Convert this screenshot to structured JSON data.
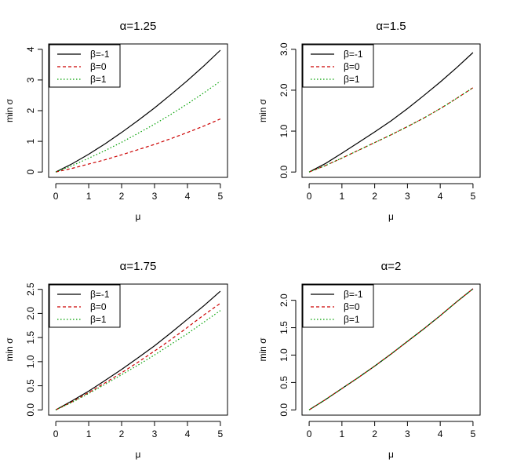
{
  "chart_data": [
    {
      "type": "line",
      "title": "α=1.25",
      "xlabel": "μ",
      "ylabel": "min σ",
      "xlim": [
        0,
        5
      ],
      "ylim": [
        0,
        4
      ],
      "xticks": [
        0,
        1,
        2,
        3,
        4,
        5
      ],
      "yticks": [
        0,
        1,
        2,
        3,
        4
      ],
      "ytick_labels": [
        "0",
        "1",
        "2",
        "3",
        "4"
      ],
      "legend_position": "top-left",
      "x": [
        0,
        0.5,
        1,
        1.5,
        2,
        2.5,
        3,
        3.5,
        4,
        4.5,
        5
      ],
      "series": [
        {
          "name": "β=-1",
          "color": "#000000",
          "dash": "solid",
          "values": [
            0,
            0.27,
            0.58,
            0.92,
            1.29,
            1.68,
            2.09,
            2.53,
            2.98,
            3.46,
            3.97
          ]
        },
        {
          "name": "β=0",
          "color": "#cc0000",
          "dash": "dashed",
          "values": [
            0,
            0.12,
            0.26,
            0.4,
            0.56,
            0.73,
            0.9,
            1.09,
            1.29,
            1.5,
            1.73
          ]
        },
        {
          "name": "β=1",
          "color": "#00a000",
          "dash": "dotted",
          "values": [
            0,
            0.21,
            0.45,
            0.7,
            0.97,
            1.26,
            1.56,
            1.88,
            2.22,
            2.58,
            2.96
          ]
        }
      ]
    },
    {
      "type": "line",
      "title": "α=1.5",
      "xlabel": "μ",
      "ylabel": "min σ",
      "xlim": [
        0,
        5
      ],
      "ylim": [
        0,
        3
      ],
      "xticks": [
        0,
        1,
        2,
        3,
        4,
        5
      ],
      "yticks": [
        0,
        1,
        2,
        3
      ],
      "ytick_labels": [
        "0.0",
        "1.0",
        "2.0",
        "3.0"
      ],
      "legend_position": "top-left",
      "x": [
        0,
        0.5,
        1,
        1.5,
        2,
        2.5,
        3,
        3.5,
        4,
        4.5,
        5
      ],
      "series": [
        {
          "name": "β=-1",
          "color": "#000000",
          "dash": "solid",
          "values": [
            0,
            0.21,
            0.46,
            0.72,
            0.98,
            1.25,
            1.55,
            1.87,
            2.2,
            2.55,
            2.92
          ]
        },
        {
          "name": "β=0",
          "color": "#cc0000",
          "dash": "dashed",
          "values": [
            0,
            0.16,
            0.34,
            0.53,
            0.72,
            0.91,
            1.11,
            1.32,
            1.55,
            1.8,
            2.06
          ]
        },
        {
          "name": "β=1",
          "color": "#00a000",
          "dash": "dotted",
          "values": [
            0,
            0.16,
            0.34,
            0.53,
            0.72,
            0.91,
            1.11,
            1.32,
            1.55,
            1.8,
            2.06
          ]
        }
      ]
    },
    {
      "type": "line",
      "title": "α=1.75",
      "xlabel": "μ",
      "ylabel": "min σ",
      "xlim": [
        0,
        5
      ],
      "ylim": [
        0,
        2.5
      ],
      "xticks": [
        0,
        1,
        2,
        3,
        4,
        5
      ],
      "yticks": [
        0,
        0.5,
        1,
        1.5,
        2,
        2.5
      ],
      "ytick_labels": [
        "0.0",
        "0.5",
        "1.0",
        "1.5",
        "2.0",
        "2.5"
      ],
      "legend_position": "top-left",
      "x": [
        0,
        0.5,
        1,
        1.5,
        2,
        2.5,
        3,
        3.5,
        4,
        4.5,
        5
      ],
      "series": [
        {
          "name": "β=-1",
          "color": "#000000",
          "dash": "solid",
          "values": [
            0,
            0.19,
            0.39,
            0.61,
            0.84,
            1.08,
            1.33,
            1.6,
            1.88,
            2.16,
            2.46
          ]
        },
        {
          "name": "β=0",
          "color": "#cc0000",
          "dash": "dashed",
          "values": [
            0,
            0.17,
            0.36,
            0.56,
            0.77,
            0.99,
            1.22,
            1.46,
            1.71,
            1.97,
            2.21
          ]
        },
        {
          "name": "β=1",
          "color": "#00a000",
          "dash": "dotted",
          "values": [
            0,
            0.16,
            0.34,
            0.53,
            0.73,
            0.93,
            1.14,
            1.36,
            1.58,
            1.82,
            2.06
          ]
        }
      ]
    },
    {
      "type": "line",
      "title": "α=2",
      "xlabel": "μ",
      "ylabel": "min σ",
      "xlim": [
        0,
        5
      ],
      "ylim": [
        0,
        2.2
      ],
      "xticks": [
        0,
        1,
        2,
        3,
        4,
        5
      ],
      "yticks": [
        0,
        0.5,
        1,
        1.5,
        2
      ],
      "ytick_labels": [
        "0.0",
        "0.5",
        "1.0",
        "1.5",
        "2.0"
      ],
      "legend_position": "top-left",
      "x": [
        0,
        0.5,
        1,
        1.5,
        2,
        2.5,
        3,
        3.5,
        4,
        4.5,
        5
      ],
      "series": [
        {
          "name": "β=-1",
          "color": "#000000",
          "dash": "solid",
          "values": [
            0,
            0.19,
            0.39,
            0.59,
            0.8,
            1.02,
            1.25,
            1.48,
            1.72,
            1.97,
            2.21
          ]
        },
        {
          "name": "β=0",
          "color": "#cc0000",
          "dash": "dashed",
          "values": [
            0,
            0.19,
            0.39,
            0.59,
            0.8,
            1.02,
            1.25,
            1.48,
            1.72,
            1.97,
            2.21
          ]
        },
        {
          "name": "β=1",
          "color": "#00a000",
          "dash": "dotted",
          "values": [
            0,
            0.19,
            0.39,
            0.59,
            0.8,
            1.02,
            1.25,
            1.48,
            1.72,
            1.97,
            2.21
          ]
        }
      ]
    }
  ]
}
